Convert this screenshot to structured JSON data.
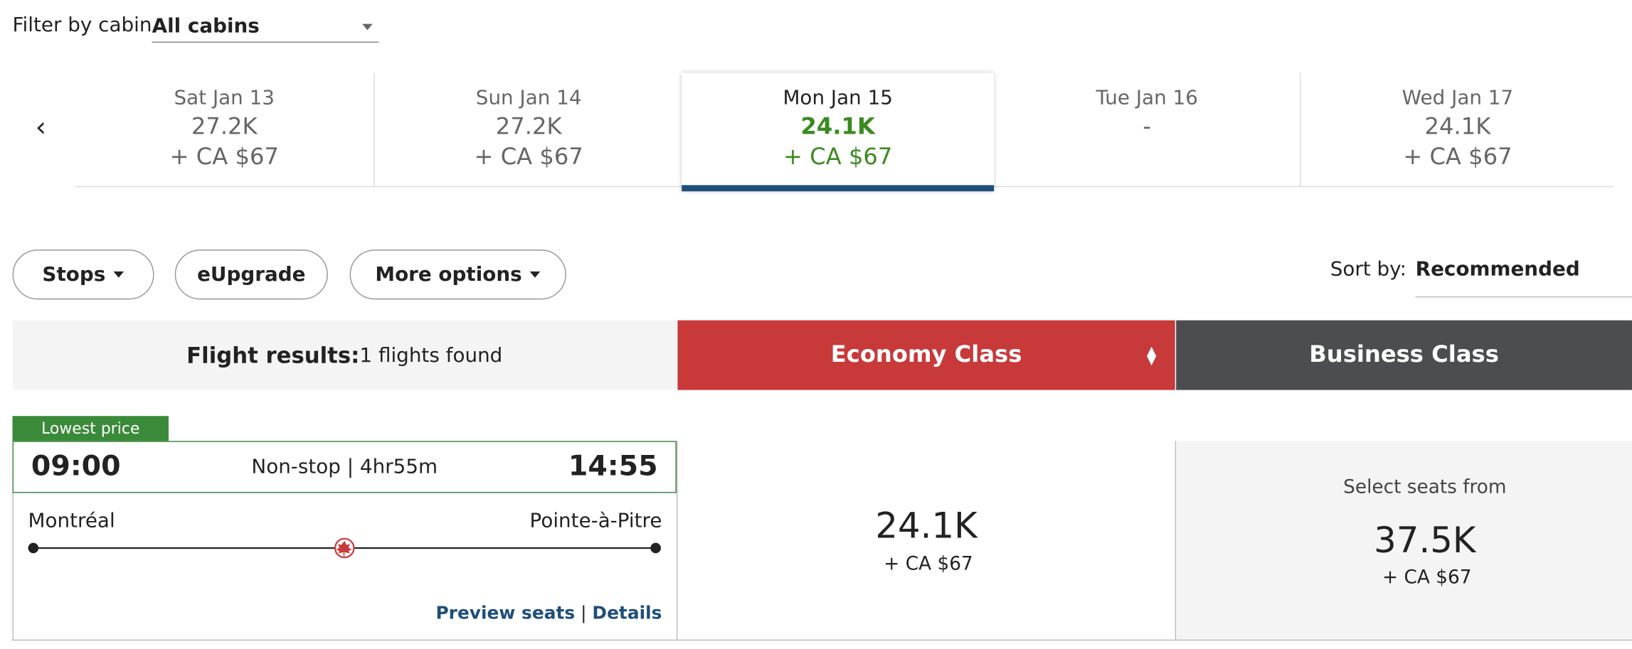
{
  "filter": {
    "label": "Filter by cabin",
    "value": "All cabins"
  },
  "dates": [
    {
      "day": "Sat Jan 13",
      "points": "27.2K",
      "fee": "+ CA $67"
    },
    {
      "day": "Sun Jan 14",
      "points": "27.2K",
      "fee": "+ CA $67"
    },
    {
      "day": "Mon Jan 15",
      "points": "24.1K",
      "fee": "+ CA $67"
    },
    {
      "day": "Tue Jan 16",
      "points": "-"
    },
    {
      "day": "Wed Jan 17",
      "points": "24.1K",
      "fee": "+ CA $67"
    }
  ],
  "buttons": [
    "Stops",
    "eUpgrade",
    "More options"
  ],
  "sort": {
    "label": "Sort by:",
    "value": "Recommended"
  },
  "results": {
    "title": "Flight results:",
    "count": "1 flights found"
  },
  "cabins": [
    "Economy Class",
    "Business Class"
  ],
  "flight": {
    "badge": "Lowest price",
    "depart": "09:00",
    "duration": "Non-stop | 4hr55m",
    "arrive": "14:55",
    "origin": "Montréal",
    "destination": "Pointe-à-Pitre",
    "links": [
      "Preview seats",
      "Details"
    ],
    "economy": {
      "points": "24.1K",
      "fee": "+ CA $67"
    },
    "business": {
      "caption": "Select seats from",
      "points": "37.5K",
      "fee": "+ CA $67"
    }
  }
}
